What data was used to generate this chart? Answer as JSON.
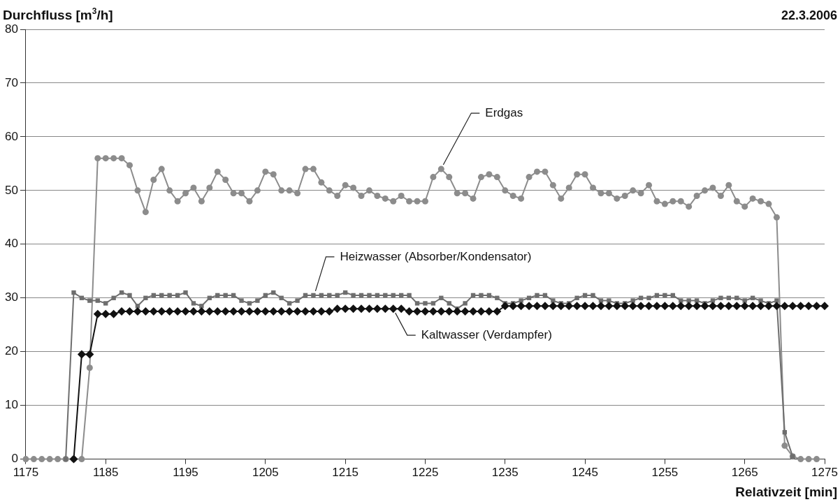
{
  "chart_data": {
    "type": "line",
    "ylabel": "Durchfluss [m$^{3}$/h]",
    "xlabel": "Relativzeit [min]",
    "annotations": [
      "22.3.2006"
    ],
    "xlim": [
      1175,
      1275
    ],
    "xticks": [
      1175,
      1185,
      1195,
      1205,
      1215,
      1225,
      1235,
      1245,
      1255,
      1265,
      1275
    ],
    "ylim": [
      0,
      80
    ],
    "yticks": [
      0,
      10,
      20,
      30,
      40,
      50,
      60,
      70,
      80
    ],
    "grid": "y",
    "legend": false,
    "line_style": "solid",
    "series": [
      {
        "name": "Erdgas",
        "color": "#8c8c8c",
        "marker": "circle",
        "x": [
          1175,
          1176,
          1177,
          1178,
          1179,
          1180,
          1181,
          1182,
          1183,
          1184,
          1185,
          1186,
          1187,
          1188,
          1189,
          1190,
          1191,
          1192,
          1193,
          1194,
          1195,
          1196,
          1197,
          1198,
          1199,
          1200,
          1201,
          1202,
          1203,
          1204,
          1205,
          1206,
          1207,
          1208,
          1209,
          1210,
          1211,
          1212,
          1213,
          1214,
          1215,
          1216,
          1217,
          1218,
          1219,
          1220,
          1221,
          1222,
          1223,
          1224,
          1225,
          1226,
          1227,
          1228,
          1229,
          1230,
          1231,
          1232,
          1233,
          1234,
          1235,
          1236,
          1237,
          1238,
          1239,
          1240,
          1241,
          1242,
          1243,
          1244,
          1245,
          1246,
          1247,
          1248,
          1249,
          1250,
          1251,
          1252,
          1253,
          1254,
          1255,
          1256,
          1257,
          1258,
          1259,
          1260,
          1261,
          1262,
          1263,
          1264,
          1265,
          1266,
          1267,
          1268,
          1269,
          1270,
          1271,
          1272,
          1273,
          1274
        ],
        "values": [
          0,
          0,
          0,
          0,
          0,
          0,
          0,
          0,
          17,
          56,
          56,
          56,
          56,
          54.7,
          50,
          46,
          52,
          54,
          50,
          48,
          49.5,
          50.5,
          48,
          50.5,
          53.5,
          52,
          49.5,
          49.5,
          48,
          50,
          53.5,
          53,
          50,
          50,
          49.5,
          54,
          54,
          51.5,
          50,
          49,
          51,
          50.5,
          49,
          50,
          49,
          48.5,
          48,
          49,
          48,
          48,
          48,
          52.5,
          54,
          52.5,
          49.5,
          49.5,
          48.5,
          52.5,
          53,
          52.5,
          50,
          49,
          48.5,
          52.5,
          53.5,
          53.5,
          51,
          48.5,
          50.5,
          53,
          53,
          50.5,
          49.5,
          49.5,
          48.5,
          49,
          50,
          49.5,
          51,
          48,
          47.5,
          48,
          48,
          47,
          49,
          50,
          50.5,
          49,
          51,
          48,
          47,
          48.5,
          48,
          47.5,
          45,
          2.5,
          0.5,
          0,
          0,
          0
        ]
      },
      {
        "name": "Heizwasser (Absorber/Kondensator)",
        "color": "#6e6e6e",
        "marker": "square",
        "x": [
          1180,
          1181,
          1182,
          1183,
          1184,
          1185,
          1186,
          1187,
          1188,
          1189,
          1190,
          1191,
          1192,
          1193,
          1194,
          1195,
          1196,
          1197,
          1198,
          1199,
          1200,
          1201,
          1202,
          1203,
          1204,
          1205,
          1206,
          1207,
          1208,
          1209,
          1210,
          1211,
          1212,
          1213,
          1214,
          1215,
          1216,
          1217,
          1218,
          1219,
          1220,
          1221,
          1222,
          1223,
          1224,
          1225,
          1226,
          1227,
          1228,
          1229,
          1230,
          1231,
          1232,
          1233,
          1234,
          1235,
          1236,
          1237,
          1238,
          1239,
          1240,
          1241,
          1242,
          1243,
          1244,
          1245,
          1246,
          1247,
          1248,
          1249,
          1250,
          1251,
          1252,
          1253,
          1254,
          1255,
          1256,
          1257,
          1258,
          1259,
          1260,
          1261,
          1262,
          1263,
          1264,
          1265,
          1266,
          1267,
          1268,
          1269,
          1270,
          1271
        ],
        "values": [
          0,
          31,
          30,
          29.5,
          29.5,
          29,
          30,
          31,
          30.5,
          28.5,
          30,
          30.5,
          30.5,
          30.5,
          30.5,
          31,
          29,
          28.5,
          30,
          30.5,
          30.5,
          30.5,
          29.5,
          29,
          29.5,
          30.5,
          31,
          30,
          29,
          29.5,
          30.5,
          30.5,
          30.5,
          30.5,
          30.5,
          31,
          30.5,
          30.5,
          30.5,
          30.5,
          30.5,
          30.5,
          30.5,
          30.5,
          29,
          29,
          29,
          30,
          29,
          28,
          29,
          30.5,
          30.5,
          30.5,
          30,
          29,
          29,
          29.5,
          30,
          30.5,
          30.5,
          29.5,
          29,
          29,
          30,
          30.5,
          30.5,
          29.5,
          29.5,
          29,
          29,
          29.5,
          30,
          30,
          30.5,
          30.5,
          30.5,
          29.5,
          29.5,
          29.5,
          29,
          29.5,
          30,
          30,
          30,
          29.5,
          30,
          29.5,
          29,
          29.5,
          5,
          0.5
        ]
      },
      {
        "name": "Kaltwasser (Verdampfer)",
        "color": "#111111",
        "marker": "diamond",
        "x": [
          1181,
          1182,
          1183,
          1184,
          1185,
          1186,
          1187,
          1188,
          1189,
          1190,
          1191,
          1192,
          1193,
          1194,
          1195,
          1196,
          1197,
          1198,
          1199,
          1200,
          1201,
          1202,
          1203,
          1204,
          1205,
          1206,
          1207,
          1208,
          1209,
          1210,
          1211,
          1212,
          1213,
          1214,
          1215,
          1216,
          1217,
          1218,
          1219,
          1220,
          1221,
          1222,
          1223,
          1224,
          1225,
          1226,
          1227,
          1228,
          1229,
          1230,
          1231,
          1232,
          1233,
          1234,
          1235,
          1236,
          1237,
          1238,
          1239,
          1240,
          1241,
          1242,
          1243,
          1244,
          1245,
          1246,
          1247,
          1248,
          1249,
          1250,
          1251,
          1252,
          1253,
          1254,
          1255,
          1256,
          1257,
          1258,
          1259,
          1260,
          1261,
          1262,
          1263,
          1264,
          1265,
          1266,
          1267,
          1268,
          1269,
          1270,
          1271,
          1272,
          1273,
          1274,
          1275
        ],
        "values": [
          0,
          19.5,
          19.5,
          27,
          27,
          27,
          27.5,
          27.5,
          27.5,
          27.5,
          27.5,
          27.5,
          27.5,
          27.5,
          27.5,
          27.5,
          27.5,
          27.5,
          27.5,
          27.5,
          27.5,
          27.5,
          27.5,
          27.5,
          27.5,
          27.5,
          27.5,
          27.5,
          27.5,
          27.5,
          27.5,
          27.5,
          27.5,
          28,
          28,
          28,
          28,
          28,
          28,
          28,
          28,
          28,
          27.5,
          27.5,
          27.5,
          27.5,
          27.5,
          27.5,
          27.5,
          27.5,
          27.5,
          27.5,
          27.5,
          27.5,
          28.5,
          28.5,
          28.5,
          28.5,
          28.5,
          28.5,
          28.5,
          28.5,
          28.5,
          28.5,
          28.5,
          28.5,
          28.5,
          28.5,
          28.5,
          28.5,
          28.5,
          28.5,
          28.5,
          28.5,
          28.5,
          28.5,
          28.5,
          28.5,
          28.5,
          28.5,
          28.5,
          28.5,
          28.5,
          28.5,
          28.5,
          28.5,
          28.5,
          28.5,
          28.5,
          28.5,
          28.5,
          28.5,
          28.5,
          28.5,
          28.5
        ]
      }
    ]
  }
}
